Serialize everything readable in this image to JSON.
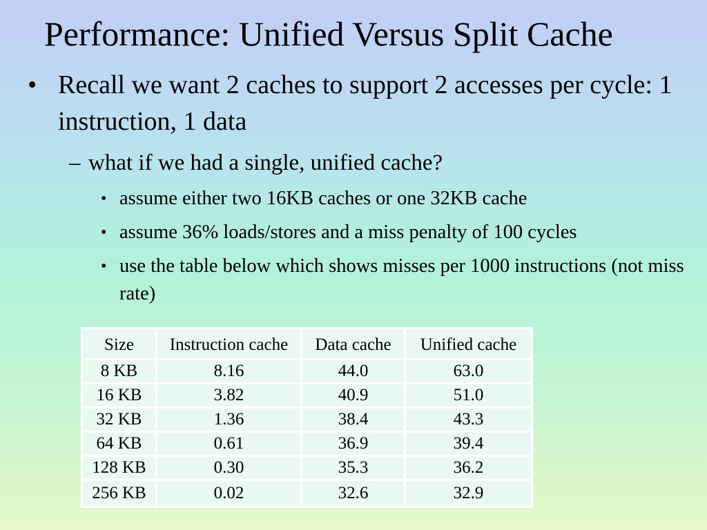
{
  "slide": {
    "title": "Performance: Unified Versus Split Cache",
    "bullets": [
      {
        "symbol": "•",
        "text": "Recall we want 2 caches to support 2 accesses per cycle: 1 instruction, 1 data"
      }
    ],
    "sub_bullets": [
      {
        "symbol": "–",
        "text": "what if we had a single, unified cache?"
      }
    ],
    "sub_sub_bullets": [
      {
        "symbol": "•",
        "text": "assume either two 16KB caches or one 32KB cache"
      },
      {
        "symbol": "•",
        "text": "assume 36% loads/stores and a miss penalty of 100 cycles"
      },
      {
        "symbol": "•",
        "text": "use the table below which shows misses per 1000 instructions (not miss rate)"
      }
    ],
    "table": {
      "headers": [
        "Size",
        "Instruction cache",
        "Data cache",
        "Unified cache"
      ],
      "rows": [
        [
          "8 KB",
          "8.16",
          "44.0",
          "63.0"
        ],
        [
          "16 KB",
          "3.82",
          "40.9",
          "51.0"
        ],
        [
          "32 KB",
          "1.36",
          "38.4",
          "43.3"
        ],
        [
          "64 KB",
          "0.61",
          "36.9",
          "39.4"
        ],
        [
          "128 KB",
          "0.30",
          "35.3",
          "36.2"
        ],
        [
          "256 KB",
          "0.02",
          "32.6",
          "32.9"
        ]
      ]
    }
  }
}
